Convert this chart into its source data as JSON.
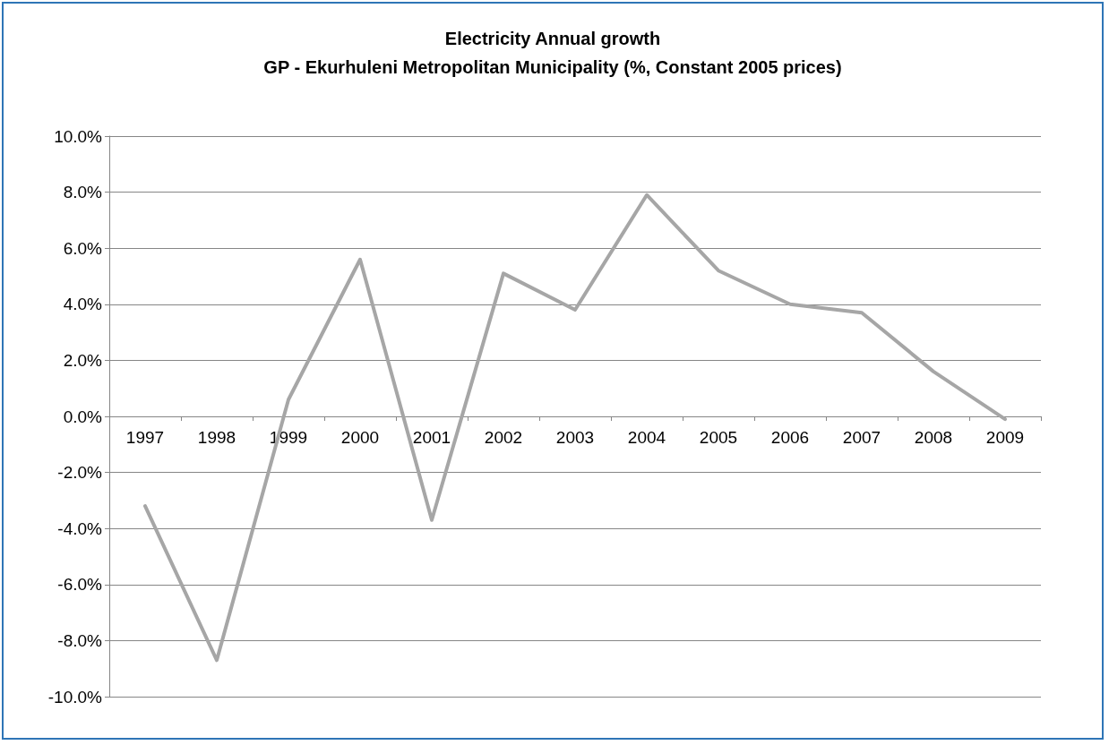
{
  "chart_data": {
    "type": "line",
    "title": "Electricity Annual growth\nGP - Ekurhuleni Metropolitan Municipality (%, Constant 2005 prices)",
    "categories": [
      "1997",
      "1998",
      "1999",
      "2000",
      "2001",
      "2002",
      "2003",
      "2004",
      "2005",
      "2006",
      "2007",
      "2008",
      "2009"
    ],
    "series": [
      {
        "color": "#a6a6a6",
        "values": [
          -3.2,
          -8.7,
          0.6,
          5.6,
          -3.7,
          5.1,
          3.8,
          7.9,
          5.2,
          4.0,
          3.7,
          1.6,
          -0.1
        ]
      }
    ],
    "ylim": [
      -10,
      10
    ],
    "yticks": [
      {
        "value": -10,
        "label": "-10.0%"
      },
      {
        "value": -8,
        "label": "-8.0%"
      },
      {
        "value": -6,
        "label": "-6.0%"
      },
      {
        "value": -4,
        "label": "-4.0%"
      },
      {
        "value": -2,
        "label": "-2.0%"
      },
      {
        "value": 0,
        "label": "0.0%"
      },
      {
        "value": 2,
        "label": "2.0%"
      },
      {
        "value": 4,
        "label": "4.0%"
      },
      {
        "value": 6,
        "label": "6.0%"
      },
      {
        "value": 8,
        "label": "8.0%"
      },
      {
        "value": 10,
        "label": "10.0%"
      }
    ],
    "grid": "y",
    "marker": "none",
    "line_style": "solid"
  }
}
